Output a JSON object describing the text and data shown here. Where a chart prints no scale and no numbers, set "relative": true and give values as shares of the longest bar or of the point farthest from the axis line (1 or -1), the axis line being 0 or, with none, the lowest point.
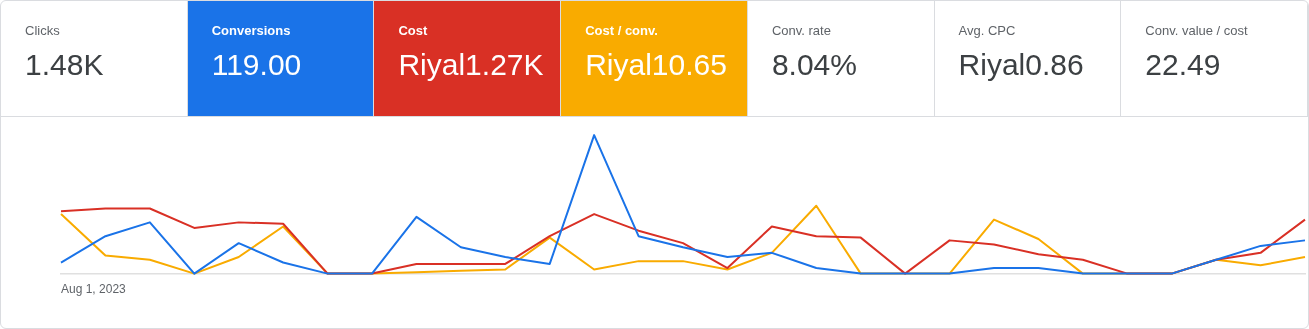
{
  "chart_data": [
    {
      "type": "other",
      "title": "Clicks",
      "subtitle": "1.48K"
    },
    {
      "type": "other",
      "title": "Conversions",
      "subtitle": "119.00",
      "color": "#1a73e8"
    },
    {
      "type": "other",
      "title": "Cost",
      "subtitle": "Riyal1.27K",
      "color": "#d93025"
    },
    {
      "type": "other",
      "title": "Cost / conv.",
      "subtitle": "Riyal10.65",
      "color": "#f9ab00"
    },
    {
      "type": "other",
      "title": "Conv. rate",
      "subtitle": "8.04%"
    },
    {
      "type": "other",
      "title": "Avg. CPC",
      "subtitle": "Riyal0.86"
    },
    {
      "type": "other",
      "title": "Conv. value / cost",
      "subtitle": "22.49"
    },
    {
      "type": "line",
      "relative": true,
      "categories": [
        null,
        null,
        null,
        null,
        null,
        null,
        null,
        null,
        null,
        null,
        null,
        null,
        null,
        null,
        null,
        null,
        null,
        null,
        null,
        null,
        null,
        null,
        null,
        null,
        null,
        null,
        null,
        null,
        null
      ],
      "annotations": [
        "Aug 1, 2023"
      ],
      "series": [
        {
          "color": "#1a73e8",
          "values": [
            0.08,
            0.27,
            0.37,
            0,
            0.22,
            0.08,
            0,
            0,
            0.41,
            0.19,
            0.12,
            0.07,
            1,
            0.27,
            0.19,
            0.12,
            0.15,
            0.04,
            0,
            0,
            0,
            0.04,
            0.04,
            0,
            0,
            0,
            0.1,
            0.2,
            0.24
          ]
        },
        {
          "color": "#d93025",
          "values": [
            0.45,
            0.47,
            0.47,
            0.33,
            0.37,
            0.36,
            0,
            0,
            0.07,
            0.07,
            0.07,
            0.27,
            0.43,
            0.31,
            0.22,
            0.04,
            0.34,
            0.27,
            0.26,
            0,
            0.24,
            0.21,
            0.14,
            0.1,
            0,
            0,
            0.1,
            0.15,
            0.39
          ]
        },
        {
          "color": "#f9ab00",
          "values": [
            0.43,
            0.13,
            0.1,
            0,
            0.12,
            0.34,
            0,
            0,
            0.01,
            0.02,
            0.03,
            0.26,
            0.03,
            0.09,
            0.09,
            0.03,
            0.15,
            0.49,
            0,
            0,
            0,
            0.39,
            0.25,
            0,
            0,
            0,
            0.1,
            0.06,
            0.12
          ]
        }
      ]
    }
  ]
}
